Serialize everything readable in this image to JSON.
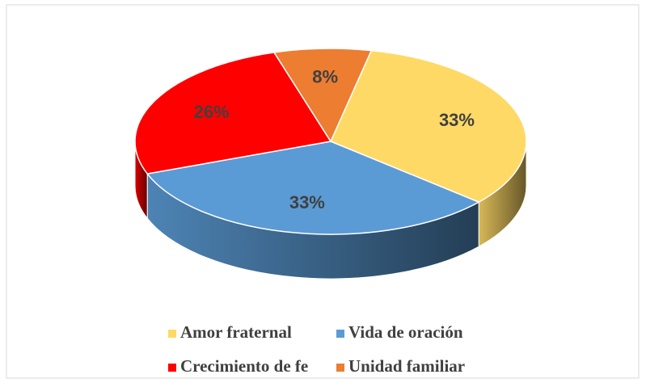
{
  "chart_data": {
    "type": "pie",
    "categories": [
      "Amor fraternal",
      "Vida de oración",
      "Crecimiento de fe",
      "Unidad familiar"
    ],
    "values": [
      33,
      33,
      26,
      8
    ],
    "value_labels": [
      "33%",
      "33%",
      "26%",
      "8%"
    ],
    "colors": [
      "#FFD966",
      "#5B9BD5",
      "#FF0000",
      "#ED7D31"
    ],
    "legend": "bottom"
  }
}
